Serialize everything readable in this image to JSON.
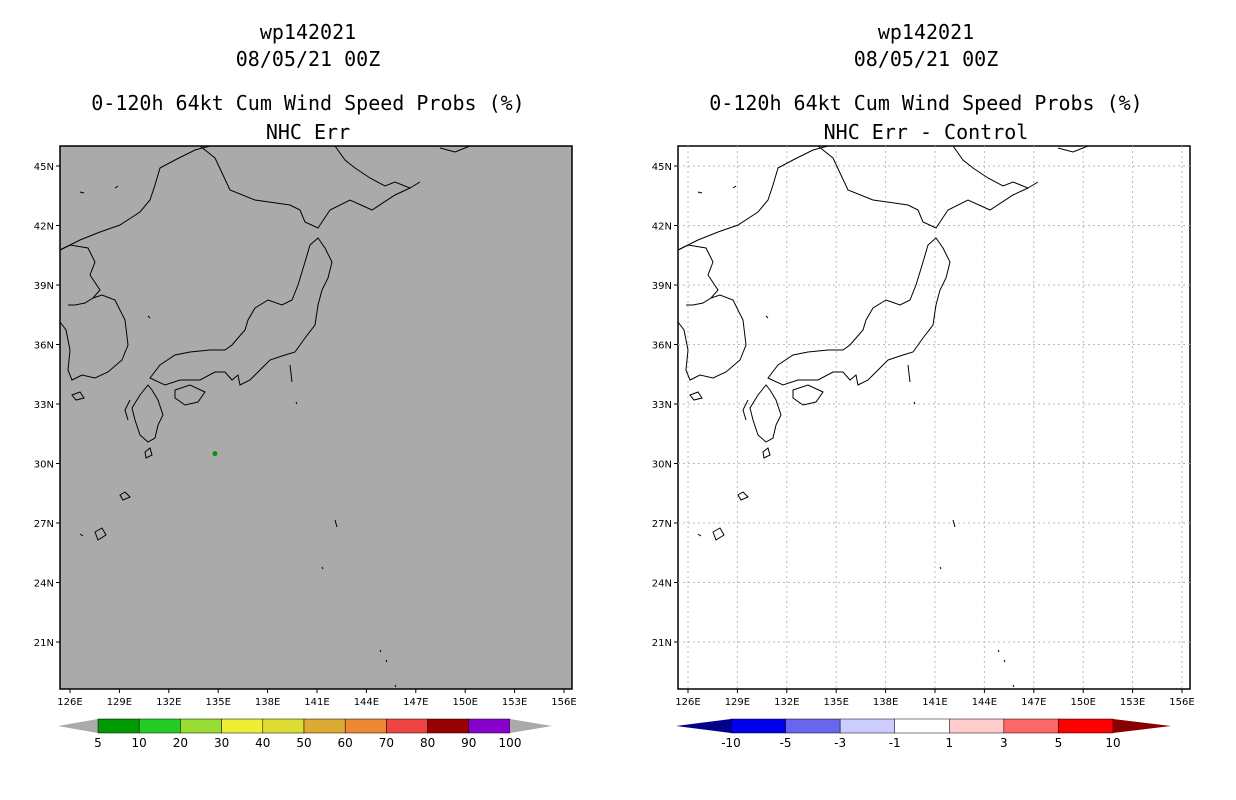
{
  "panels": [
    {
      "storm_id": "wp142021",
      "datetime": "08/05/21 00Z",
      "product": "0-120h 64kt Cum Wind Speed Probs (%)",
      "subtitle": "NHC Err",
      "background": "#aaaaaa"
    },
    {
      "storm_id": "wp142021",
      "datetime": "08/05/21 00Z",
      "product": "0-120h 64kt Cum Wind Speed Probs (%)",
      "subtitle": "NHC Err - Control",
      "background": "#ffffff"
    }
  ],
  "axes": {
    "lon_labels": [
      "126E",
      "129E",
      "132E",
      "135E",
      "138E",
      "141E",
      "144E",
      "147E",
      "150E",
      "153E",
      "156E"
    ],
    "lat_labels": [
      "45N",
      "42N",
      "39N",
      "36N",
      "33N",
      "30N",
      "27N",
      "24N",
      "21N"
    ]
  },
  "prob_colorbar": {
    "labels": [
      "5",
      "10",
      "20",
      "30",
      "40",
      "50",
      "60",
      "70",
      "80",
      "90",
      "100"
    ],
    "colors": [
      "#009900",
      "#22cc22",
      "#99dd33",
      "#eeee33",
      "#dddd33",
      "#ddaa33",
      "#ee8833",
      "#ee4444",
      "#990000",
      "#8800cc"
    ],
    "end_color": "#aaaaaa"
  },
  "diff_colorbar": {
    "labels": [
      "-10",
      "-5",
      "-3",
      "-1",
      "1",
      "3",
      "5",
      "10"
    ],
    "colors": [
      "#0000ee",
      "#6666ee",
      "#ccccff",
      "#ffffff",
      "#ffcccc",
      "#ff6666",
      "#ff0000"
    ],
    "low_color": "#000088",
    "high_color": "#880000"
  },
  "data_marker": {
    "lon": 134.8,
    "lat": 30.5,
    "color": "#009900"
  }
}
